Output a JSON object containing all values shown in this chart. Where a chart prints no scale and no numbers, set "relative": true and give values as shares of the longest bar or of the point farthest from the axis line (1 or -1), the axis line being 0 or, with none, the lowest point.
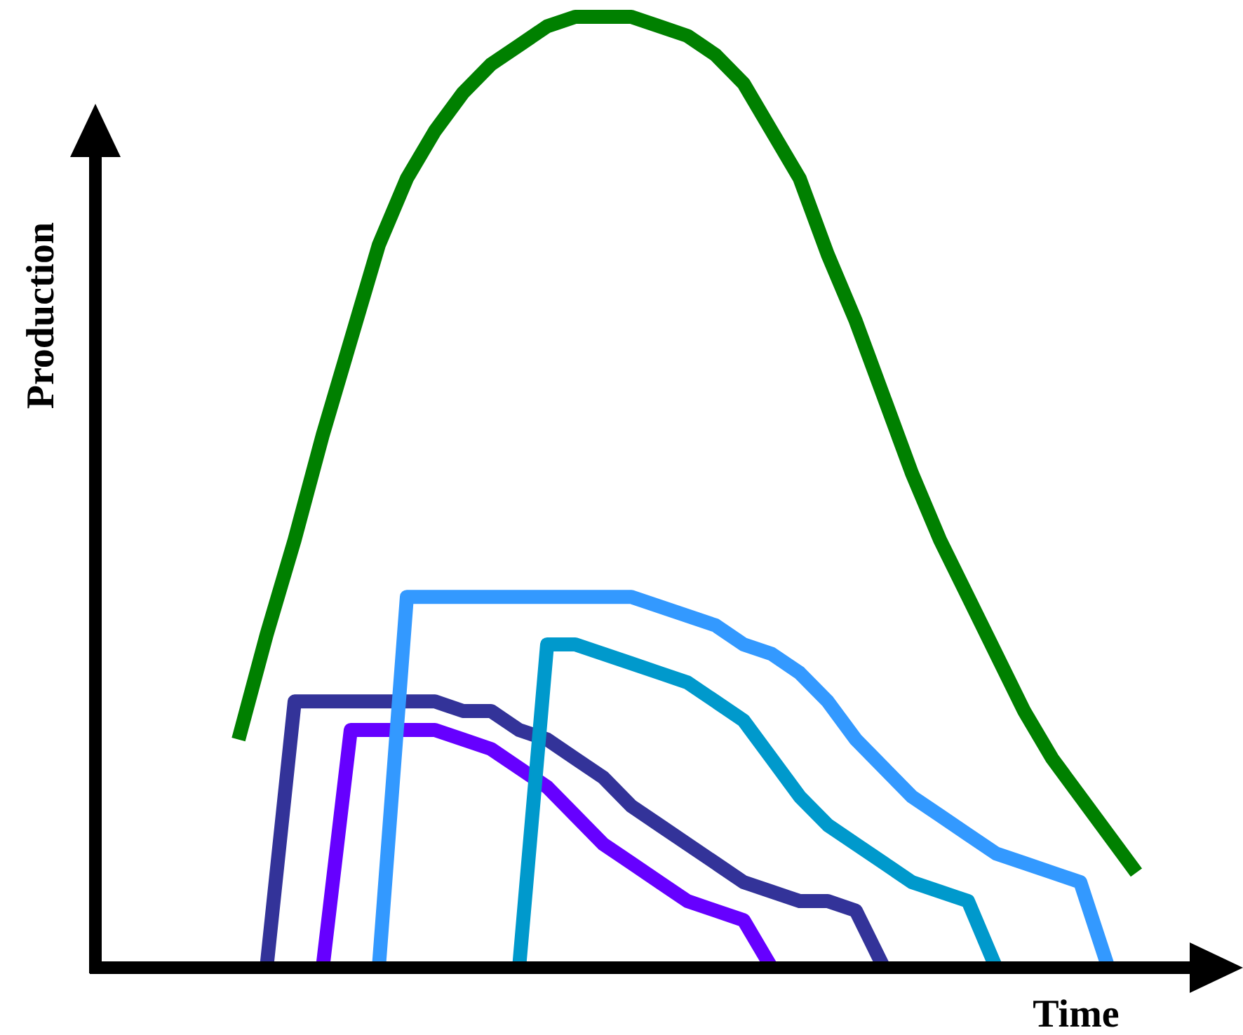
{
  "chart_data": {
    "type": "line",
    "xlabel": "Time",
    "ylabel": "Production",
    "relative": true,
    "categories": [
      null,
      null,
      null,
      null,
      null,
      null,
      null,
      null,
      null,
      null,
      null,
      null,
      null,
      null,
      null,
      null,
      null,
      null,
      null,
      null,
      null,
      null,
      null,
      null,
      null,
      null,
      null,
      null,
      null,
      null,
      null,
      null,
      null,
      null,
      null,
      null,
      null,
      null,
      null,
      null
    ],
    "series": [
      {
        "color": "#008000",
        "values": [
          null,
          null,
          null,
          null,
          null,
          0.24,
          0.35,
          0.45,
          0.56,
          0.66,
          0.76,
          0.83,
          0.88,
          0.92,
          0.95,
          0.97,
          0.99,
          1.0,
          1.0,
          1.0,
          0.99,
          0.98,
          0.96,
          0.93,
          0.88,
          0.83,
          0.75,
          0.68,
          0.6,
          0.52,
          0.45,
          0.39,
          0.33,
          0.27,
          0.22,
          0.18,
          0.14,
          0.1,
          null,
          null
        ]
      },
      {
        "color": "#333399",
        "values": [
          null,
          null,
          null,
          null,
          null,
          null,
          0,
          0.28,
          0.28,
          0.28,
          0.28,
          0.28,
          0.28,
          0.27,
          0.27,
          0.25,
          0.24,
          0.22,
          0.2,
          0.17,
          0.15,
          0.13,
          0.11,
          0.09,
          0.08,
          0.07,
          0.07,
          0.06,
          0,
          null,
          null,
          null,
          null,
          null,
          null,
          null,
          null,
          null,
          null,
          null
        ]
      },
      {
        "color": "#6600ff",
        "values": [
          null,
          null,
          null,
          null,
          null,
          null,
          null,
          null,
          0,
          0.25,
          0.25,
          0.25,
          0.25,
          0.24,
          0.23,
          0.21,
          0.19,
          0.16,
          0.13,
          0.11,
          0.09,
          0.07,
          0.06,
          0.05,
          0,
          null,
          null,
          null,
          null,
          null,
          null,
          null,
          null,
          null,
          null,
          null,
          null,
          null,
          null,
          null
        ]
      },
      {
        "color": "#3399ff",
        "values": [
          null,
          null,
          null,
          null,
          null,
          null,
          null,
          null,
          null,
          null,
          0,
          0.39,
          0.39,
          0.39,
          0.39,
          0.39,
          0.39,
          0.39,
          0.39,
          0.39,
          0.38,
          0.37,
          0.36,
          0.34,
          0.33,
          0.31,
          0.28,
          0.24,
          0.21,
          0.18,
          0.16,
          0.14,
          0.12,
          0.11,
          0.1,
          0.09,
          0,
          null,
          null,
          null
        ]
      },
      {
        "color": "#0099cc",
        "values": [
          null,
          null,
          null,
          null,
          null,
          null,
          null,
          null,
          null,
          null,
          null,
          null,
          null,
          null,
          null,
          0,
          0.34,
          0.34,
          0.33,
          0.32,
          0.31,
          0.3,
          0.28,
          0.26,
          0.22,
          0.18,
          0.15,
          0.13,
          0.11,
          0.09,
          0.08,
          0.07,
          0,
          null,
          null,
          null,
          null,
          null,
          null,
          null
        ]
      }
    ]
  }
}
